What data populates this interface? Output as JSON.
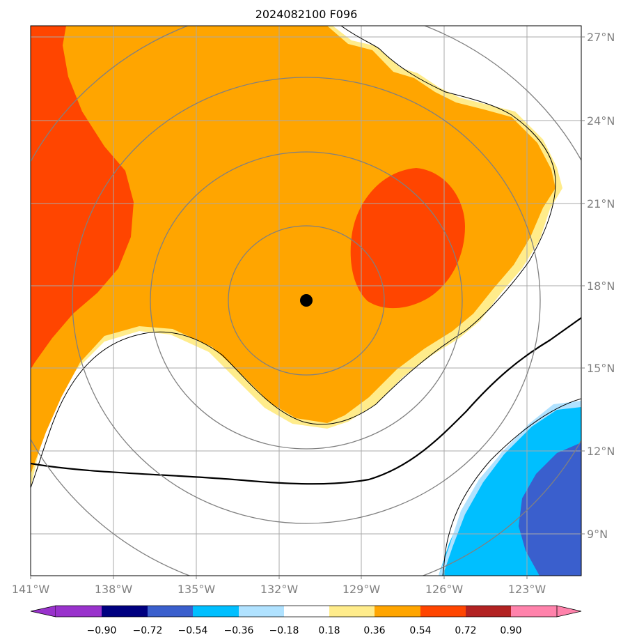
{
  "title": "2024082100 F096",
  "colors": {
    "c_lt_n090": "#9932CC",
    "c_n090_n072": "#000080",
    "c_n072_n054": "#3A5FCD",
    "c_n054_n036": "#00BFFF",
    "c_n036_n018": "#B0E2FF",
    "c_n018_p018": "#FFFFFF",
    "c_p018_p036": "#FFEC8B",
    "c_p036_p054": "#FFA500",
    "c_p054_p072": "#FF4500",
    "c_p072_p090": "#B22222",
    "c_gt_p090": "#FF82AB",
    "gridline": "#A9A9A9",
    "range_rings": "#808080",
    "contour": "#000000",
    "center_marker": "#000000"
  },
  "storm_center_marker": {
    "lon": -131.2,
    "lat": 17.4,
    "icon": "black-dot-icon"
  },
  "lat_labels": [
    "27°N",
    "24°N",
    "21°N",
    "18°N",
    "15°N",
    "12°N",
    "9°N"
  ],
  "lon_labels": [
    "141°W",
    "138°W",
    "135°W",
    "132°W",
    "129°W",
    "126°W",
    "123°W"
  ],
  "colorbar": {
    "ticks": [
      "−0.90",
      "−0.72",
      "−0.54",
      "−0.36",
      "−0.18",
      "0.18",
      "0.36",
      "0.54",
      "0.72",
      "0.90"
    ],
    "extend": "both"
  }
}
